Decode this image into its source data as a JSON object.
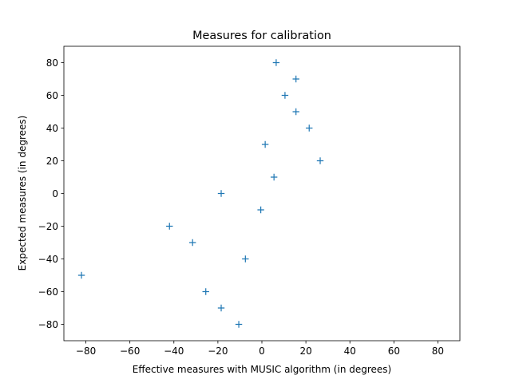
{
  "chart_data": {
    "type": "scatter",
    "title": "Measures for calibration",
    "xlabel": "Effective measures with MUSIC algorithm (in degrees)",
    "ylabel": "Expected measures (in degrees)",
    "xlim": [
      -90,
      90
    ],
    "ylim": [
      -90,
      90
    ],
    "xticks": [
      -80,
      -60,
      -40,
      -20,
      0,
      20,
      40,
      60,
      80
    ],
    "yticks": [
      -80,
      -60,
      -40,
      -20,
      0,
      20,
      40,
      60,
      80
    ],
    "xtick_labels": [
      "−80",
      "−60",
      "−40",
      "−20",
      "0",
      "20",
      "40",
      "60",
      "80"
    ],
    "ytick_labels": [
      "−80",
      "−60",
      "−40",
      "−20",
      "0",
      "20",
      "40",
      "60",
      "80"
    ],
    "grid": false,
    "marker": "plus",
    "color": "#1f77b4",
    "points": [
      {
        "x": 6.5,
        "y": 80
      },
      {
        "x": 15.5,
        "y": 70
      },
      {
        "x": 10.5,
        "y": 60
      },
      {
        "x": 15.5,
        "y": 50
      },
      {
        "x": 21.5,
        "y": 40
      },
      {
        "x": 1.5,
        "y": 30
      },
      {
        "x": 26.5,
        "y": 20
      },
      {
        "x": 5.5,
        "y": 10
      },
      {
        "x": -18.5,
        "y": 0
      },
      {
        "x": -0.5,
        "y": -10
      },
      {
        "x": -42,
        "y": -20
      },
      {
        "x": -31.5,
        "y": -30
      },
      {
        "x": -7.5,
        "y": -40
      },
      {
        "x": -82,
        "y": -50
      },
      {
        "x": -25.5,
        "y": -60
      },
      {
        "x": -18.5,
        "y": -70
      },
      {
        "x": -10.5,
        "y": -80
      }
    ]
  }
}
